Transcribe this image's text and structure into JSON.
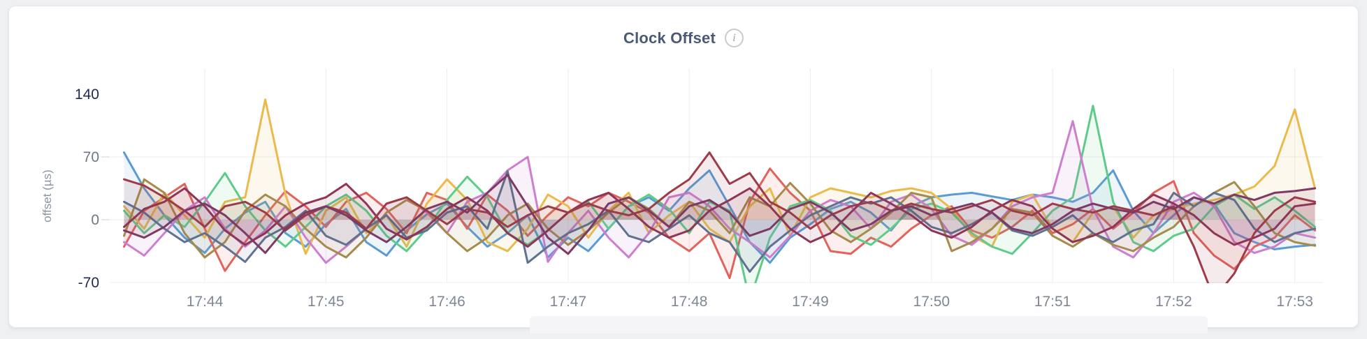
{
  "page": {
    "background": "#eef0f2"
  },
  "card": {
    "background": "#ffffff",
    "border_color": "#e4e6e9"
  },
  "header": {
    "title": "Clock Offset",
    "info_icon_glyph": "i"
  },
  "colors": {
    "title_text": "#4a5a75",
    "x_axis_text": "#7d8795",
    "y_axis_text_major": "#1d2c4c",
    "y_axis_text_minor": "#6e7887",
    "gridline": "#ececec",
    "tick_mark": "#e0e1e3",
    "info_icon_border": "#c6cbd2",
    "info_icon_text": "#9aa2ad"
  },
  "chart_data": {
    "type": "line",
    "title": "Clock Offset",
    "xlabel": "",
    "ylabel": "offset (µs)",
    "ylim": [
      -70,
      140
    ],
    "grid": true,
    "legend": "none",
    "x_tick_labels": [
      "17:44",
      "17:45",
      "17:46",
      "17:47",
      "17:48",
      "17:49",
      "17:50",
      "17:51",
      "17:52",
      "17:53"
    ],
    "y_ticks": [
      {
        "label": "140",
        "value": 140,
        "emphasis": true
      },
      {
        "label": "70",
        "value": 70,
        "emphasis": false
      },
      {
        "label": "0",
        "value": 0,
        "emphasis": false
      },
      {
        "label": "-70",
        "value": -70,
        "emphasis": true
      }
    ],
    "x_start": "17:43:20",
    "x_interval_seconds": 10,
    "series": [
      {
        "color": "#5B9BD5",
        "values": [
          75,
          35,
          5,
          -20,
          -37,
          -10,
          8,
          20,
          -15,
          -30,
          -5,
          12,
          -25,
          -40,
          -12,
          6,
          18,
          -8,
          -30,
          -15,
          5,
          -42,
          -20,
          -35,
          -10,
          15,
          25,
          10,
          35,
          55,
          15,
          -25,
          -48,
          -20,
          -5,
          12,
          20,
          8,
          -12,
          15,
          25,
          28,
          30,
          26,
          22,
          28,
          25,
          20,
          30,
          55,
          10,
          -15,
          5,
          25,
          18,
          -15,
          -25,
          -33,
          -30,
          -28
        ]
      },
      {
        "color": "#E0635C",
        "values": [
          -30,
          10,
          25,
          40,
          -10,
          -57,
          -25,
          5,
          32,
          15,
          -8,
          20,
          30,
          12,
          -15,
          30,
          22,
          -10,
          28,
          10,
          -18,
          5,
          25,
          15,
          30,
          20,
          8,
          -20,
          -35,
          -15,
          -65,
          20,
          57,
          30,
          10,
          -35,
          -38,
          -20,
          -30,
          -10,
          5,
          15,
          -12,
          -20,
          -8,
          10,
          -15,
          -5,
          12,
          -10,
          8,
          30,
          43,
          -15,
          -40,
          -55,
          -30,
          -20,
          5,
          -12
        ]
      },
      {
        "color": "#EABA4B",
        "values": [
          15,
          -10,
          30,
          5,
          -20,
          20,
          25,
          134,
          28,
          -38,
          10,
          25,
          -15,
          5,
          -30,
          18,
          45,
          22,
          -25,
          -35,
          -10,
          28,
          15,
          -20,
          10,
          30,
          -15,
          5,
          20,
          -10,
          -25,
          15,
          35,
          -18,
          25,
          35,
          30,
          25,
          32,
          35,
          30,
          12,
          -18,
          -30,
          20,
          28,
          -10,
          -25,
          8,
          15,
          -20,
          5,
          12,
          18,
          22,
          28,
          37,
          60,
          123,
          35
        ]
      },
      {
        "color": "#5FCB8A",
        "values": [
          10,
          -15,
          5,
          -8,
          20,
          52,
          15,
          -12,
          -30,
          -8,
          15,
          28,
          10,
          -18,
          -35,
          -10,
          22,
          48,
          25,
          -15,
          -28,
          -12,
          8,
          20,
          -10,
          15,
          28,
          12,
          -15,
          20,
          10,
          -90,
          -20,
          15,
          22,
          10,
          -18,
          -28,
          -10,
          12,
          18,
          8,
          -15,
          -30,
          -38,
          -15,
          10,
          25,
          127,
          20,
          -25,
          -35,
          -18,
          -10,
          15,
          28,
          12,
          25,
          10,
          -8
        ]
      },
      {
        "color": "#CE7ECF",
        "values": [
          -25,
          -40,
          -15,
          10,
          25,
          -10,
          -30,
          -12,
          15,
          -20,
          -48,
          -30,
          -10,
          18,
          25,
          8,
          -15,
          20,
          30,
          55,
          70,
          -47,
          -15,
          10,
          -20,
          -42,
          -15,
          25,
          30,
          15,
          -10,
          -25,
          -42,
          -18,
          10,
          22,
          15,
          -10,
          20,
          28,
          12,
          -18,
          -28,
          -10,
          15,
          25,
          30,
          110,
          12,
          -30,
          -42,
          -15,
          20,
          30,
          15,
          -25,
          -37,
          -30,
          -15,
          -20
        ]
      },
      {
        "color": "#A68B4C",
        "values": [
          -18,
          45,
          30,
          -15,
          -42,
          -25,
          10,
          28,
          15,
          -10,
          -30,
          -42,
          -20,
          8,
          22,
          10,
          -15,
          -35,
          -20,
          5,
          18,
          -10,
          -28,
          -12,
          8,
          25,
          12,
          -8,
          20,
          10,
          -15,
          25,
          15,
          41,
          18,
          -12,
          -25,
          -10,
          8,
          30,
          25,
          -35,
          -25,
          -10,
          12,
          8,
          -18,
          -30,
          -15,
          -28,
          -35,
          -20,
          -8,
          15,
          30,
          42,
          15,
          -15,
          -25,
          -29
        ]
      },
      {
        "color": "#5F7290",
        "values": [
          20,
          8,
          -10,
          -25,
          -15,
          -30,
          -47,
          -20,
          -8,
          10,
          -18,
          -28,
          -10,
          5,
          -20,
          -12,
          8,
          15,
          -10,
          54,
          -48,
          -30,
          -15,
          -5,
          10,
          -18,
          -25,
          -10,
          5,
          -15,
          -25,
          -58,
          -30,
          -12,
          5,
          15,
          25,
          18,
          25,
          10,
          -8,
          -15,
          -5,
          8,
          -12,
          -18,
          -8,
          5,
          -15,
          -25,
          -12,
          -5,
          30,
          15,
          30,
          22,
          -10,
          -25,
          -15,
          -10
        ]
      },
      {
        "color": "#8E3558",
        "values": [
          -8,
          12,
          20,
          35,
          15,
          -12,
          -28,
          -15,
          5,
          18,
          25,
          40,
          18,
          -10,
          -22,
          -8,
          12,
          25,
          10,
          -15,
          -30,
          -12,
          8,
          22,
          30,
          12,
          -8,
          -20,
          -12,
          10,
          22,
          35,
          15,
          -10,
          -25,
          -15,
          8,
          30,
          18,
          5,
          -12,
          -20,
          -8,
          10,
          22,
          15,
          -10,
          -25,
          -18,
          -8,
          12,
          28,
          18,
          5,
          -15,
          -28,
          -20,
          -10,
          15,
          18
        ]
      },
      {
        "color": "#9E3B49",
        "values": [
          45,
          38,
          25,
          10,
          -8,
          15,
          20,
          8,
          -12,
          5,
          15,
          8,
          -10,
          18,
          25,
          10,
          -5,
          12,
          8,
          -8,
          5,
          15,
          8,
          18,
          10,
          5,
          12,
          30,
          45,
          75,
          40,
          52,
          20,
          8,
          -10,
          5,
          15,
          20,
          10,
          18,
          12,
          8,
          15,
          22,
          10,
          5,
          18,
          12,
          8,
          15,
          10,
          5,
          15,
          -30,
          -88,
          -60,
          -15,
          10,
          25,
          20
        ]
      },
      {
        "color": "#7C3A64",
        "values": [
          -12,
          -20,
          -8,
          10,
          18,
          5,
          -15,
          -37,
          -10,
          8,
          15,
          5,
          -12,
          -25,
          -8,
          12,
          20,
          8,
          30,
          50,
          15,
          -20,
          -38,
          -12,
          18,
          25,
          10,
          -8,
          15,
          22,
          8,
          -18,
          -10,
          12,
          20,
          8,
          -12,
          -5,
          10,
          15,
          5,
          12,
          18,
          8,
          -10,
          -15,
          -5,
          10,
          18,
          12,
          8,
          20,
          12,
          25,
          18,
          28,
          22,
          30,
          32,
          35
        ]
      }
    ]
  }
}
